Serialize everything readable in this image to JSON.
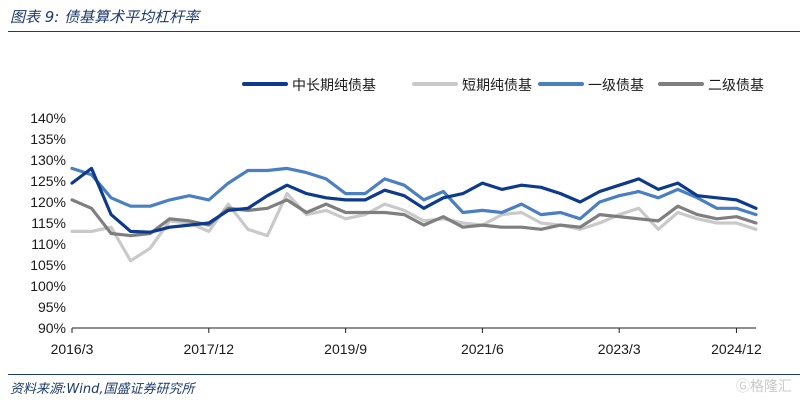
{
  "header": {
    "title": "图表 9:  债基算术平均杠杆率"
  },
  "footer": {
    "source": "资料来源:Wind,国盛证券研究所",
    "watermark": "Ⓖ格隆汇"
  },
  "colors": {
    "series": [
      "#0d3a8c",
      "#c9c9c9",
      "#4a7fc1",
      "#7f7f7f"
    ]
  },
  "chart_data": {
    "type": "line",
    "title": "",
    "xlabel": "",
    "ylabel": "",
    "ylim": [
      90,
      140
    ],
    "yticks": [
      90,
      95,
      100,
      105,
      110,
      115,
      120,
      125,
      130,
      135,
      140
    ],
    "ytick_labels": [
      "90%",
      "95%",
      "100%",
      "105%",
      "110%",
      "115%",
      "120%",
      "125%",
      "130%",
      "135%",
      "140%"
    ],
    "xticks": [
      0,
      7,
      14,
      21,
      28,
      34
    ],
    "xtick_labels": [
      "2016/3",
      "2017/12",
      "2019/9",
      "2021/6",
      "2023/3",
      "2024/12"
    ],
    "grid": false,
    "legend": "top-right",
    "series": [
      {
        "name": "中长期纯债基",
        "values": [
          124.5,
          128.0,
          117.0,
          113.0,
          112.8,
          114.0,
          114.5,
          115.0,
          118.0,
          118.5,
          121.5,
          124.0,
          122.0,
          121.0,
          120.5,
          120.5,
          122.8,
          121.5,
          118.5,
          121.0,
          122.0,
          124.5,
          123.0,
          124.0,
          123.5,
          122.0,
          120.0,
          122.5,
          124.0,
          125.5,
          123.0,
          124.5,
          121.5,
          121.0,
          120.5,
          118.5
        ]
      },
      {
        "name": "短期纯债基",
        "values": [
          113.0,
          113.0,
          114.0,
          106.0,
          109.0,
          115.5,
          115.0,
          113.0,
          119.5,
          113.5,
          112.0,
          122.0,
          117.0,
          118.0,
          116.0,
          117.0,
          119.5,
          118.0,
          115.5,
          116.0,
          115.0,
          114.5,
          117.0,
          117.5,
          115.0,
          114.5,
          113.5,
          115.0,
          117.0,
          118.5,
          113.5,
          117.5,
          116.0,
          115.0,
          115.0,
          113.5
        ]
      },
      {
        "name": "一级债基",
        "values": [
          128.0,
          126.5,
          121.0,
          119.0,
          119.0,
          120.5,
          121.5,
          120.5,
          124.5,
          127.5,
          127.5,
          128.0,
          127.0,
          125.5,
          122.0,
          122.0,
          125.5,
          124.0,
          120.5,
          122.5,
          117.5,
          118.0,
          117.5,
          119.5,
          117.0,
          117.5,
          116.0,
          120.0,
          121.5,
          122.5,
          121.0,
          123.0,
          121.0,
          118.5,
          118.5,
          117.0
        ]
      },
      {
        "name": "二级债基",
        "values": [
          120.5,
          118.5,
          112.5,
          112.0,
          112.5,
          116.0,
          115.5,
          114.5,
          118.5,
          118.0,
          118.5,
          120.5,
          117.5,
          119.5,
          117.5,
          117.5,
          117.5,
          117.0,
          114.5,
          116.5,
          114.0,
          114.5,
          114.0,
          114.0,
          113.5,
          114.5,
          114.0,
          117.0,
          116.5,
          116.0,
          115.5,
          119.0,
          117.0,
          116.0,
          116.5,
          115.0
        ]
      }
    ]
  }
}
